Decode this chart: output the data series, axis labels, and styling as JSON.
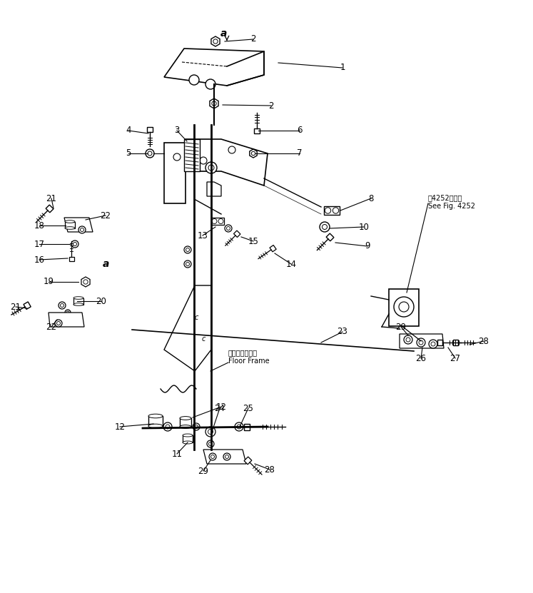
{
  "bg_color": "#ffffff",
  "line_color": "#000000",
  "fig_width": 7.47,
  "fig_height": 8.31,
  "dpi": 100,
  "annotation_fontsize": 8.5,
  "small_fontsize": 7.0,
  "title_note": "笥4252図参照\nSee Fig. 4252",
  "floor_frame_label": "フロアフレーム\nFloor Frame",
  "label_a1": [
    0.318,
    0.956
  ],
  "label_a2": [
    0.148,
    0.468
  ]
}
